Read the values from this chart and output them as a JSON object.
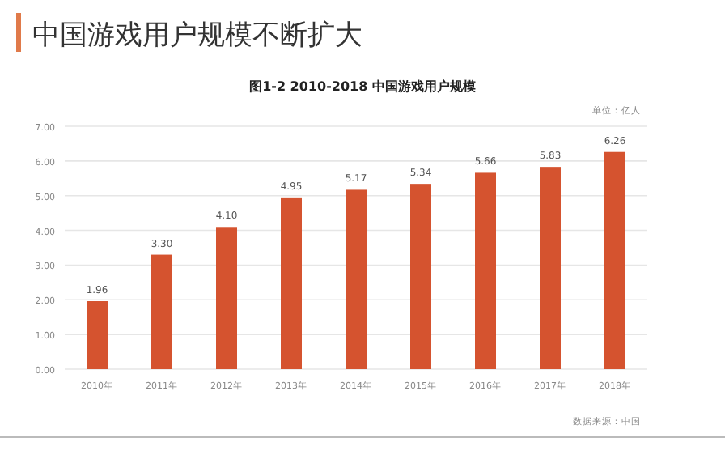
{
  "chart_data": {
    "type": "bar",
    "title": "中国游戏用户规模不断扩大",
    "subtitle": "图1-2 2010-2018 中国游戏用户规模",
    "categories": [
      "2010年",
      "2011年",
      "2012年",
      "2013年",
      "2014年",
      "2015年",
      "2016年",
      "2017年",
      "2018年"
    ],
    "values": [
      1.96,
      3.3,
      4.1,
      4.95,
      5.17,
      5.34,
      5.66,
      5.83,
      6.26
    ],
    "color": "#d5532f",
    "ylim": [
      0,
      7
    ],
    "yticks": [
      {
        "value": 0,
        "label": "0.00"
      },
      {
        "value": 1,
        "label": "1.00"
      },
      {
        "value": 2,
        "label": "2.00"
      },
      {
        "value": 3,
        "label": "3.00"
      },
      {
        "value": 4,
        "label": "4.00"
      },
      {
        "value": 5,
        "label": "5.00"
      },
      {
        "value": 6,
        "label": "6.00"
      },
      {
        "value": 7,
        "label": "7.00"
      }
    ],
    "grid": "y",
    "value_labels": [
      "1.96",
      "3.30",
      "4.10",
      "4.95",
      "5.17",
      "5.34",
      "5.66",
      "5.83",
      "6.26"
    ],
    "annotations": [
      "单位：亿人",
      "数据来源：中国"
    ]
  }
}
